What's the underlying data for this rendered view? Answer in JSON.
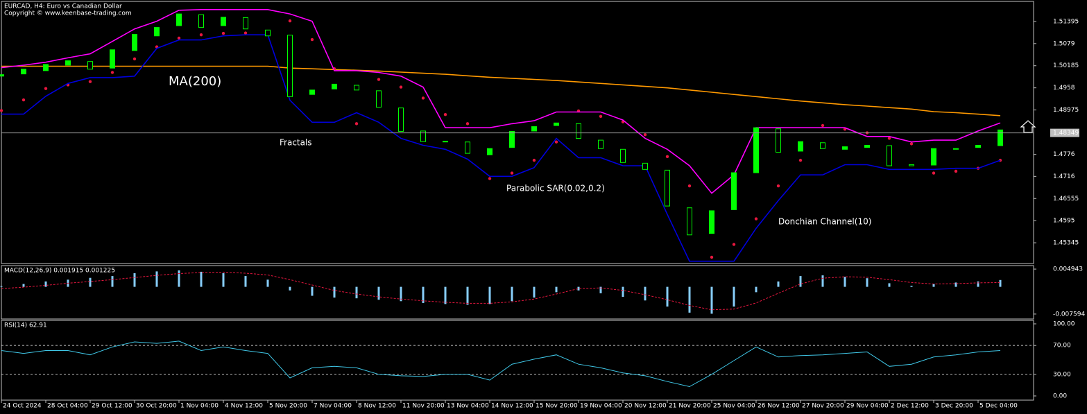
{
  "chart_data": [
    {
      "type": "candlestick",
      "title": "EURCAD, H4:  Euro vs Canadian Dollar",
      "subtitle": "Copyright © www.keenbase-trading.com",
      "x": [
        0,
        4,
        8,
        12,
        16,
        20,
        24,
        28,
        32,
        36,
        40,
        44,
        48,
        52,
        56,
        60,
        64,
        68,
        72,
        76,
        80,
        84,
        88,
        92,
        96,
        100,
        104,
        108,
        112,
        116,
        120,
        124,
        128,
        132,
        136,
        140,
        144,
        148,
        152,
        156,
        160,
        164,
        168,
        172,
        176,
        180
      ],
      "xlim": [
        0,
        186
      ],
      "open": [
        1.499,
        1.4996,
        1.5005,
        1.502,
        1.503,
        1.5012,
        1.506,
        1.51,
        1.5128,
        1.5158,
        1.5128,
        1.515,
        1.5116,
        1.5102,
        1.494,
        1.4955,
        1.4965,
        1.495,
        1.4903,
        1.484,
        1.4812,
        1.481,
        1.4775,
        1.4795,
        1.484,
        1.4855,
        1.486,
        1.4815,
        1.479,
        1.4752,
        1.4733,
        1.463,
        1.456,
        1.4625,
        1.4726,
        1.4846,
        1.4785,
        1.4808,
        1.479,
        1.4795,
        1.48,
        1.4748,
        1.4747,
        1.479,
        1.4795,
        1.48
      ],
      "close": [
        1.4994,
        1.5009,
        1.5022,
        1.5032,
        1.5009,
        1.5062,
        1.5104,
        1.5123,
        1.516,
        1.5123,
        1.5151,
        1.5119,
        1.51,
        1.4934,
        1.4952,
        1.4968,
        1.4952,
        1.4905,
        1.4839,
        1.4811,
        1.4811,
        1.4779,
        1.4792,
        1.4839,
        1.4852,
        1.4862,
        1.482,
        1.4792,
        1.4754,
        1.4735,
        1.4635,
        1.4556,
        1.4622,
        1.4726,
        1.4849,
        1.4782,
        1.4811,
        1.4792,
        1.4797,
        1.4801,
        1.4745,
        1.4745,
        1.4792,
        1.4792,
        1.4801,
        1.4843
      ],
      "ylim": [
        1.44778,
        1.51943
      ],
      "yticks": [
        1.45345,
        1.4595,
        1.46555,
        1.4716,
        1.4776,
        1.48975,
        1.4958,
        1.50185,
        1.5079,
        1.51395
      ],
      "current_price": 1.48349,
      "annotations": [
        "Fractals"
      ],
      "series": [
        {
          "name": "MA(200)",
          "color": "#ff9900",
          "style": "line",
          "values": [
            1.5017,
            1.5017,
            1.5017,
            1.5017,
            1.5017,
            1.5017,
            1.5017,
            1.5017,
            1.5017,
            1.5017,
            1.5017,
            1.5017,
            1.5017,
            1.5012,
            1.501,
            1.5008,
            1.5006,
            1.5004,
            1.5001,
            1.4998,
            1.4995,
            1.4991,
            1.4987,
            1.4984,
            1.4981,
            1.4978,
            1.4974,
            1.497,
            1.4966,
            1.4962,
            1.4958,
            1.4952,
            1.4946,
            1.494,
            1.4934,
            1.4928,
            1.4922,
            1.4917,
            1.4912,
            1.4908,
            1.4904,
            1.49,
            1.4893,
            1.489,
            1.4886,
            1.4882
          ]
        },
        {
          "name": "Parabolic SAR(0.02,0.2)",
          "color": "#e8173f",
          "style": "dots",
          "values": [
            1.4896,
            1.4925,
            1.4956,
            1.4966,
            1.4975,
            1.5,
            1.5037,
            1.507,
            1.5094,
            1.5103,
            1.5107,
            1.5108,
            1.511,
            1.5141,
            1.509,
            1.501,
            1.486,
            1.4981,
            1.496,
            1.493,
            1.4885,
            1.486,
            1.471,
            1.4725,
            1.476,
            1.481,
            1.4895,
            1.488,
            1.4865,
            1.483,
            1.477,
            1.469,
            1.4495,
            1.453,
            1.46,
            1.469,
            1.476,
            1.4855,
            1.4845,
            1.4835,
            1.482,
            1.4805,
            1.4725,
            1.473,
            1.4738,
            1.476
          ]
        },
        {
          "name": "Donchian Channel(10)",
          "color": "#ff00ff",
          "style": "channel",
          "lower_color": "#0000dd",
          "values": [
            1.5013,
            1.502,
            1.5028,
            1.504,
            1.5051,
            1.5085,
            1.5119,
            1.514,
            1.517,
            1.5172,
            1.5172,
            1.5172,
            1.5172,
            1.516,
            1.514,
            1.5005,
            1.5005,
            1.5,
            1.499,
            1.496,
            1.4849,
            1.4849,
            1.4849,
            1.486,
            1.4868,
            1.4892,
            1.4892,
            1.4892,
            1.487,
            1.482,
            1.479,
            1.4745,
            1.467,
            1.472,
            1.4849,
            1.4849,
            1.4849,
            1.4849,
            1.4849,
            1.4825,
            1.4825,
            1.481,
            1.4815,
            1.4815,
            1.484,
            1.4862
          ],
          "lower": [
            1.4886,
            1.4886,
            1.4935,
            1.497,
            1.4986,
            1.4986,
            1.499,
            1.5066,
            1.5089,
            1.5089,
            1.51,
            1.5103,
            1.5103,
            1.4924,
            1.4864,
            1.4864,
            1.489,
            1.4864,
            1.482,
            1.4801,
            1.479,
            1.4763,
            1.4716,
            1.4716,
            1.474,
            1.482,
            1.4767,
            1.4767,
            1.4745,
            1.4745,
            1.4612,
            1.4484,
            1.4484,
            1.4484,
            1.4574,
            1.465,
            1.472,
            1.472,
            1.4748,
            1.4748,
            1.4735,
            1.4735,
            1.4735,
            1.4738,
            1.4738,
            1.476
          ]
        }
      ]
    },
    {
      "type": "macd",
      "title": "MACD(12,26,9) 0.001915 0.001225",
      "x": [
        0,
        4,
        8,
        12,
        16,
        20,
        24,
        28,
        32,
        36,
        40,
        44,
        48,
        52,
        56,
        60,
        64,
        68,
        72,
        76,
        80,
        84,
        88,
        92,
        96,
        100,
        104,
        108,
        112,
        116,
        120,
        124,
        128,
        132,
        136,
        140,
        144,
        148,
        152,
        156,
        160,
        164,
        168,
        172,
        176,
        180
      ],
      "xlim": [
        0,
        186
      ],
      "ylim": [
        -0.00897,
        0.00592
      ],
      "yticks": [
        -0.007594,
        0.004943
      ],
      "color": "#87cefa",
      "values": [
        0.0002,
        0.0008,
        0.0015,
        0.002,
        0.0025,
        0.003,
        0.0038,
        0.0043,
        0.0046,
        0.0042,
        0.0038,
        0.003,
        0.002,
        -0.001,
        -0.0025,
        -0.003,
        -0.0032,
        -0.0036,
        -0.004,
        -0.0045,
        -0.0048,
        -0.005,
        -0.0048,
        -0.004,
        -0.003,
        -0.0015,
        -0.001,
        -0.0018,
        -0.0028,
        -0.0038,
        -0.0055,
        -0.0072,
        -0.0075,
        -0.0055,
        -0.0015,
        0.0015,
        0.003,
        0.0032,
        0.0028,
        0.0024,
        0.001,
        0.0003,
        0.0008,
        0.0012,
        0.0015,
        0.0019
      ],
      "signal_color": "#e8173f",
      "signal": [
        -0.0005,
        -0.0001,
        0.0004,
        0.001,
        0.0015,
        0.002,
        0.0026,
        0.0032,
        0.0037,
        0.004,
        0.0041,
        0.0038,
        0.0033,
        0.002,
        0.0005,
        -0.001,
        -0.002,
        -0.0028,
        -0.0034,
        -0.0039,
        -0.0043,
        -0.0046,
        -0.0046,
        -0.0042,
        -0.0034,
        -0.002,
        -0.0005,
        -0.0003,
        -0.001,
        -0.0022,
        -0.0036,
        -0.0052,
        -0.0064,
        -0.0062,
        -0.0045,
        -0.0018,
        0.0008,
        0.0024,
        0.0028,
        0.0027,
        0.002,
        0.0012,
        0.0008,
        0.0009,
        0.0011,
        0.0012
      ]
    },
    {
      "type": "line",
      "title": "RSI(14) 62.91",
      "x": [
        0,
        4,
        8,
        12,
        16,
        20,
        24,
        28,
        32,
        36,
        40,
        44,
        48,
        52,
        56,
        60,
        64,
        68,
        72,
        76,
        80,
        84,
        88,
        92,
        96,
        100,
        104,
        108,
        112,
        116,
        120,
        124,
        128,
        132,
        136,
        140,
        144,
        148,
        152,
        156,
        160,
        164,
        168,
        172,
        176,
        180
      ],
      "xlim": [
        0,
        186
      ],
      "ylim": [
        -5.8,
        104.8
      ],
      "yticks": [
        {
          "value": 0,
          "label": "0.00"
        },
        {
          "value": 30,
          "label": "30.00"
        },
        {
          "value": 70,
          "label": "70.00"
        },
        {
          "value": 100,
          "label": "100.00"
        }
      ],
      "grid_levels": [
        30,
        70
      ],
      "color": "#40c8e8",
      "values": [
        63,
        59,
        63,
        63,
        57,
        68,
        75,
        73,
        76,
        63,
        68,
        63,
        59,
        25,
        39,
        41,
        39,
        30,
        28,
        27,
        30,
        30,
        22,
        44,
        51,
        57,
        44,
        39,
        32,
        28,
        20,
        13,
        30,
        49,
        68,
        54,
        56,
        57,
        59,
        61,
        41,
        44,
        54,
        57,
        61,
        63
      ],
      "xticks": [
        {
          "value": 0,
          "label": "24 Oct 2024"
        },
        {
          "value": 8,
          "label": "28 Oct 04:00"
        },
        {
          "value": 16,
          "label": "29 Oct 12:00"
        },
        {
          "value": 24,
          "label": "30 Oct 20:00"
        },
        {
          "value": 32,
          "label": "1 Nov 04:00"
        },
        {
          "value": 40,
          "label": "4 Nov 12:00"
        },
        {
          "value": 48,
          "label": "5 Nov 20:00"
        },
        {
          "value": 56,
          "label": "7 Nov 04:00"
        },
        {
          "value": 64,
          "label": "8 Nov 12:00"
        },
        {
          "value": 72,
          "label": "11 Nov 20:00"
        },
        {
          "value": 80,
          "label": "13 Nov 04:00"
        },
        {
          "value": 88,
          "label": "14 Nov 12:00"
        },
        {
          "value": 96,
          "label": "15 Nov 20:00"
        },
        {
          "value": 104,
          "label": "19 Nov 04:00"
        },
        {
          "value": 112,
          "label": "20 Nov 12:00"
        },
        {
          "value": 120,
          "label": "21 Nov 20:00"
        },
        {
          "value": 128,
          "label": "25 Nov 04:00"
        },
        {
          "value": 136,
          "label": "26 Nov 12:00"
        },
        {
          "value": 144,
          "label": "27 Nov 20:00"
        },
        {
          "value": 152,
          "label": "29 Nov 04:00"
        },
        {
          "value": 160,
          "label": "2 Dec 12:00"
        },
        {
          "value": 168,
          "label": "3 Dec 20:00"
        },
        {
          "value": 176,
          "label": "5 Dec 04:00"
        }
      ]
    }
  ]
}
